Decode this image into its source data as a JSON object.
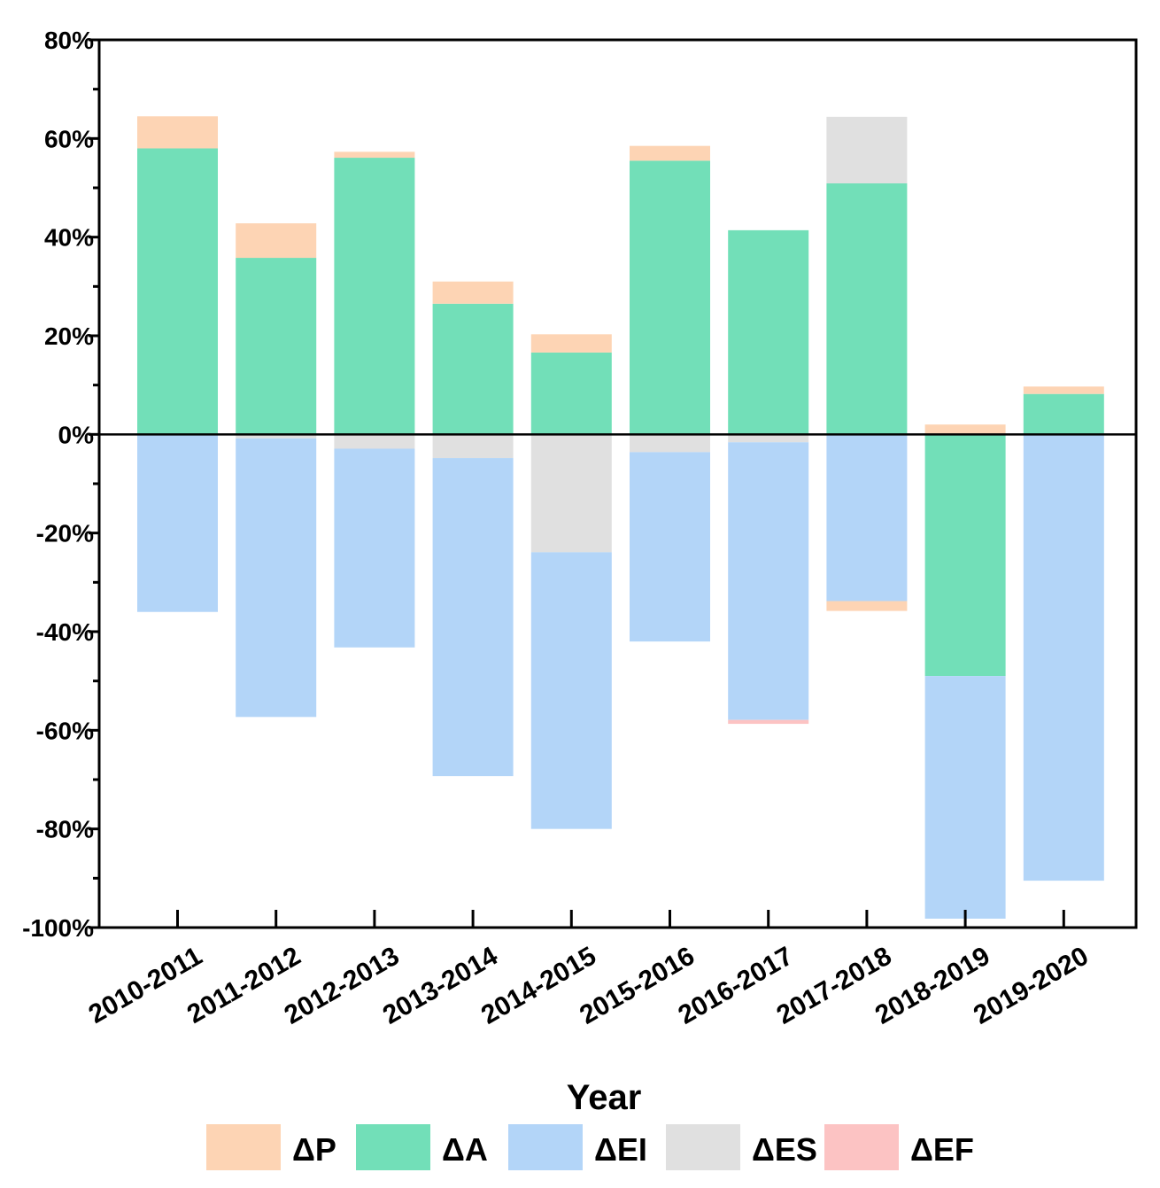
{
  "chart_data": {
    "type": "bar",
    "stacked": true,
    "title": "",
    "xlabel": "Year",
    "ylabel": "",
    "ylim": [
      -100,
      80
    ],
    "y_ticks": [
      80,
      60,
      40,
      20,
      0,
      -20,
      -40,
      -60,
      -80,
      -100
    ],
    "y_tick_labels": [
      "80%",
      "60%",
      "40%",
      "20%",
      "0%",
      "-20%",
      "-40%",
      "-60%",
      "-80%",
      "-100%"
    ],
    "grid": false,
    "legend_position": "bottom",
    "categories": [
      "2010-2011",
      "2011-2012",
      "2012-2013",
      "2013-2014",
      "2014-2015",
      "2015-2016",
      "2016-2017",
      "2017-2018",
      "2018-2019",
      "2019-2020"
    ],
    "series": [
      {
        "name": "ΔP",
        "color": "#fdd4b4",
        "values": [
          6.5,
          7.0,
          1.2,
          4.5,
          3.7,
          3.0,
          0,
          -2.0,
          2.0,
          1.5
        ]
      },
      {
        "name": "ΔA",
        "color": "#72dfb8",
        "values": [
          58.0,
          35.8,
          56.1,
          26.5,
          16.6,
          55.5,
          41.4,
          50.9,
          -49.0,
          8.2
        ]
      },
      {
        "name": "ΔEI",
        "color": "#b3d5f8",
        "values": [
          -36.0,
          -56.5,
          -40.3,
          -64.5,
          -56.1,
          -38.4,
          -56.3,
          -33.8,
          -49.2,
          -90.5
        ]
      },
      {
        "name": "ΔES",
        "color": "#e0e0e0",
        "values": [
          0,
          -0.8,
          -2.9,
          -4.8,
          -23.9,
          -3.6,
          -1.6,
          13.5,
          0,
          0
        ]
      },
      {
        "name": "ΔEF",
        "color": "#fcc3c3",
        "values": [
          0,
          0,
          0,
          0,
          0,
          0,
          -0.8,
          0,
          0,
          0
        ]
      }
    ]
  }
}
